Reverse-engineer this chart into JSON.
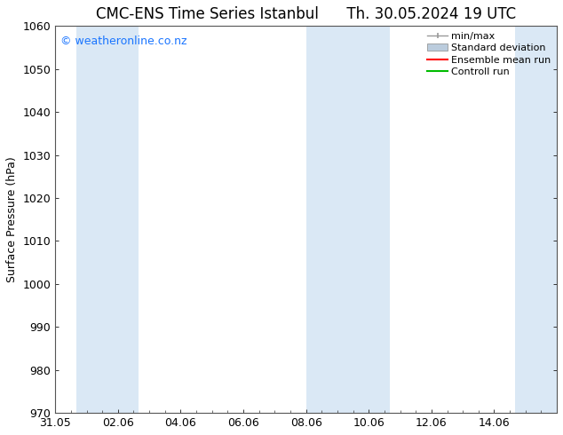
{
  "title_left": "CMC-ENS Time Series Istanbul",
  "title_right": "Th. 30.05.2024 19 UTC",
  "ylabel": "Surface Pressure (hPa)",
  "ylim": [
    970,
    1060
  ],
  "yticks": [
    970,
    980,
    990,
    1000,
    1010,
    1020,
    1030,
    1040,
    1050,
    1060
  ],
  "xlim_start": 0,
  "xlim_end": 16,
  "xtick_labels": [
    "31.05",
    "02.06",
    "04.06",
    "06.06",
    "08.06",
    "10.06",
    "12.06",
    "14.06",
    ""
  ],
  "xtick_positions": [
    0,
    2,
    4,
    6,
    8,
    10,
    12,
    14,
    16
  ],
  "watermark": "© weatheronline.co.nz",
  "watermark_color": "#1a75ff",
  "background_color": "#ffffff",
  "plot_bg_color": "#ffffff",
  "shaded_bands": [
    {
      "x_start": 0.67,
      "x_end": 2.67,
      "color": "#dae8f5"
    },
    {
      "x_start": 8.0,
      "x_end": 9.33,
      "color": "#dae8f5"
    },
    {
      "x_start": 9.33,
      "x_end": 10.67,
      "color": "#dae8f5"
    },
    {
      "x_start": 14.67,
      "x_end": 16.0,
      "color": "#dae8f5"
    }
  ],
  "legend_items": [
    {
      "label": "min/max",
      "color": "#999999",
      "style": "errorbar"
    },
    {
      "label": "Standard deviation",
      "color": "#bbccdd",
      "style": "fillbetween"
    },
    {
      "label": "Ensemble mean run",
      "color": "#ff0000",
      "style": "line"
    },
    {
      "label": "Controll run",
      "color": "#00bb00",
      "style": "line"
    }
  ],
  "title_fontsize": 12,
  "tick_fontsize": 9,
  "label_fontsize": 9,
  "watermark_fontsize": 9,
  "legend_fontsize": 8
}
